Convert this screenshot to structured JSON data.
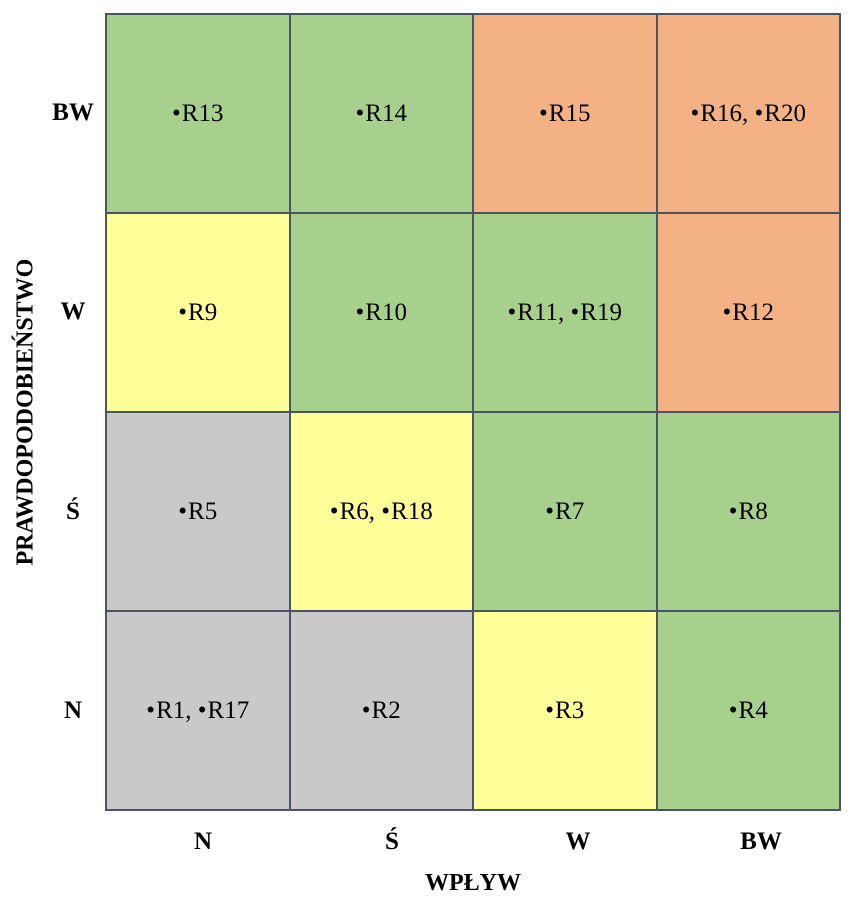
{
  "axis": {
    "y_title": "PRAWDOPODOBIEŃSTWO",
    "x_title": "WPŁYW",
    "row_labels": [
      "BW",
      "W",
      "Ś",
      "N"
    ],
    "col_labels": [
      "N",
      "Ś",
      "W",
      "BW"
    ]
  },
  "bullet": "•",
  "levels": {
    "green": "#a8d08d",
    "orange": "#f4b183",
    "yellow": "#ffff99",
    "grey": "#c9c9c9"
  },
  "matrix": [
    [
      {
        "level": "green",
        "risks": [
          "R13"
        ]
      },
      {
        "level": "green",
        "risks": [
          "R14"
        ]
      },
      {
        "level": "orange",
        "risks": [
          "R15"
        ]
      },
      {
        "level": "orange",
        "risks": [
          "R16",
          "R20"
        ]
      }
    ],
    [
      {
        "level": "yellow",
        "risks": [
          "R9"
        ]
      },
      {
        "level": "green",
        "risks": [
          "R10"
        ]
      },
      {
        "level": "green",
        "risks": [
          "R11",
          "R19"
        ]
      },
      {
        "level": "orange",
        "risks": [
          "R12"
        ]
      }
    ],
    [
      {
        "level": "grey",
        "risks": [
          "R5"
        ]
      },
      {
        "level": "yellow",
        "risks": [
          "R6",
          "R18"
        ]
      },
      {
        "level": "green",
        "risks": [
          "R7"
        ]
      },
      {
        "level": "green",
        "risks": [
          "R8"
        ]
      }
    ],
    [
      {
        "level": "grey",
        "risks": [
          "R1",
          "R17"
        ]
      },
      {
        "level": "grey",
        "risks": [
          "R2"
        ]
      },
      {
        "level": "yellow",
        "risks": [
          "R3"
        ]
      },
      {
        "level": "green",
        "risks": [
          "R4"
        ]
      }
    ]
  ]
}
